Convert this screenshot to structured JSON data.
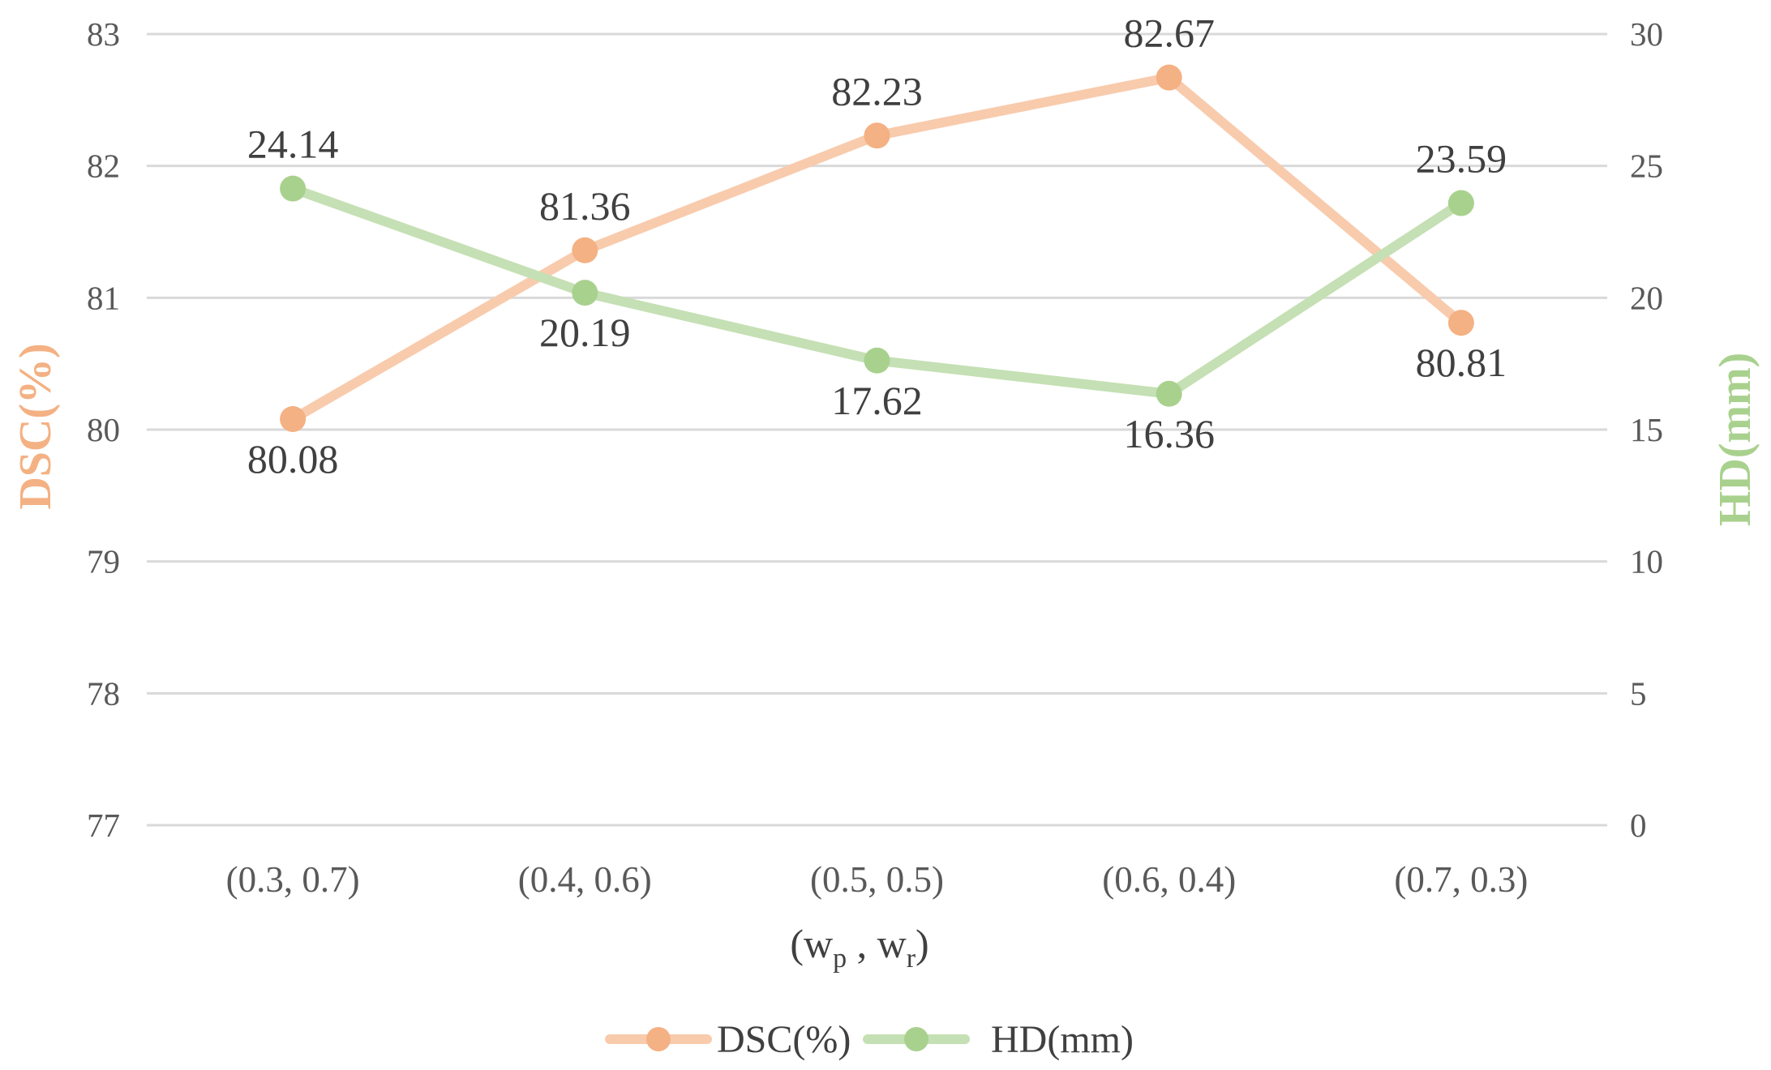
{
  "chart_data": {
    "type": "line",
    "categories": [
      "(0.3, 0.7)",
      "(0.4, 0.6)",
      "(0.5, 0.5)",
      "(0.6, 0.4)",
      "(0.7, 0.3)"
    ],
    "xlabel": {
      "prefix": "(w",
      "sub1": "p",
      "middle": " , w",
      "sub2": "r",
      "suffix": ")"
    },
    "y_left": {
      "label": "DSC(%)",
      "ylim": [
        77,
        83
      ],
      "ticks": [
        "77",
        "78",
        "79",
        "80",
        "81",
        "82",
        "83"
      ],
      "color": "#f4b183"
    },
    "y_right": {
      "label": "HD(mm)",
      "ylim": [
        0,
        30
      ],
      "ticks": [
        "0",
        "5",
        "10",
        "15",
        "20",
        "25",
        "30"
      ],
      "color": "#a9d18e"
    },
    "series": [
      {
        "name": "DSC(%)",
        "axis": "left",
        "values": [
          80.08,
          81.36,
          82.23,
          82.67,
          80.81
        ],
        "labels": [
          "80.08",
          "81.36",
          "82.23",
          "82.67",
          "80.81"
        ],
        "label_positions": [
          "below",
          "above",
          "above",
          "above",
          "below"
        ],
        "line_color": "#f8cbad",
        "marker_color": "#f4b183"
      },
      {
        "name": "HD(mm)",
        "axis": "right",
        "values": [
          24.14,
          20.19,
          17.62,
          16.36,
          23.59
        ],
        "labels": [
          "24.14",
          "20.19",
          "17.62",
          "16.36",
          "23.59"
        ],
        "label_positions": [
          "above",
          "below",
          "below",
          "below",
          "above"
        ],
        "line_color": "#c5e0b4",
        "marker_color": "#a9d18e"
      }
    ],
    "grid": true,
    "legend": "bottom-center"
  }
}
